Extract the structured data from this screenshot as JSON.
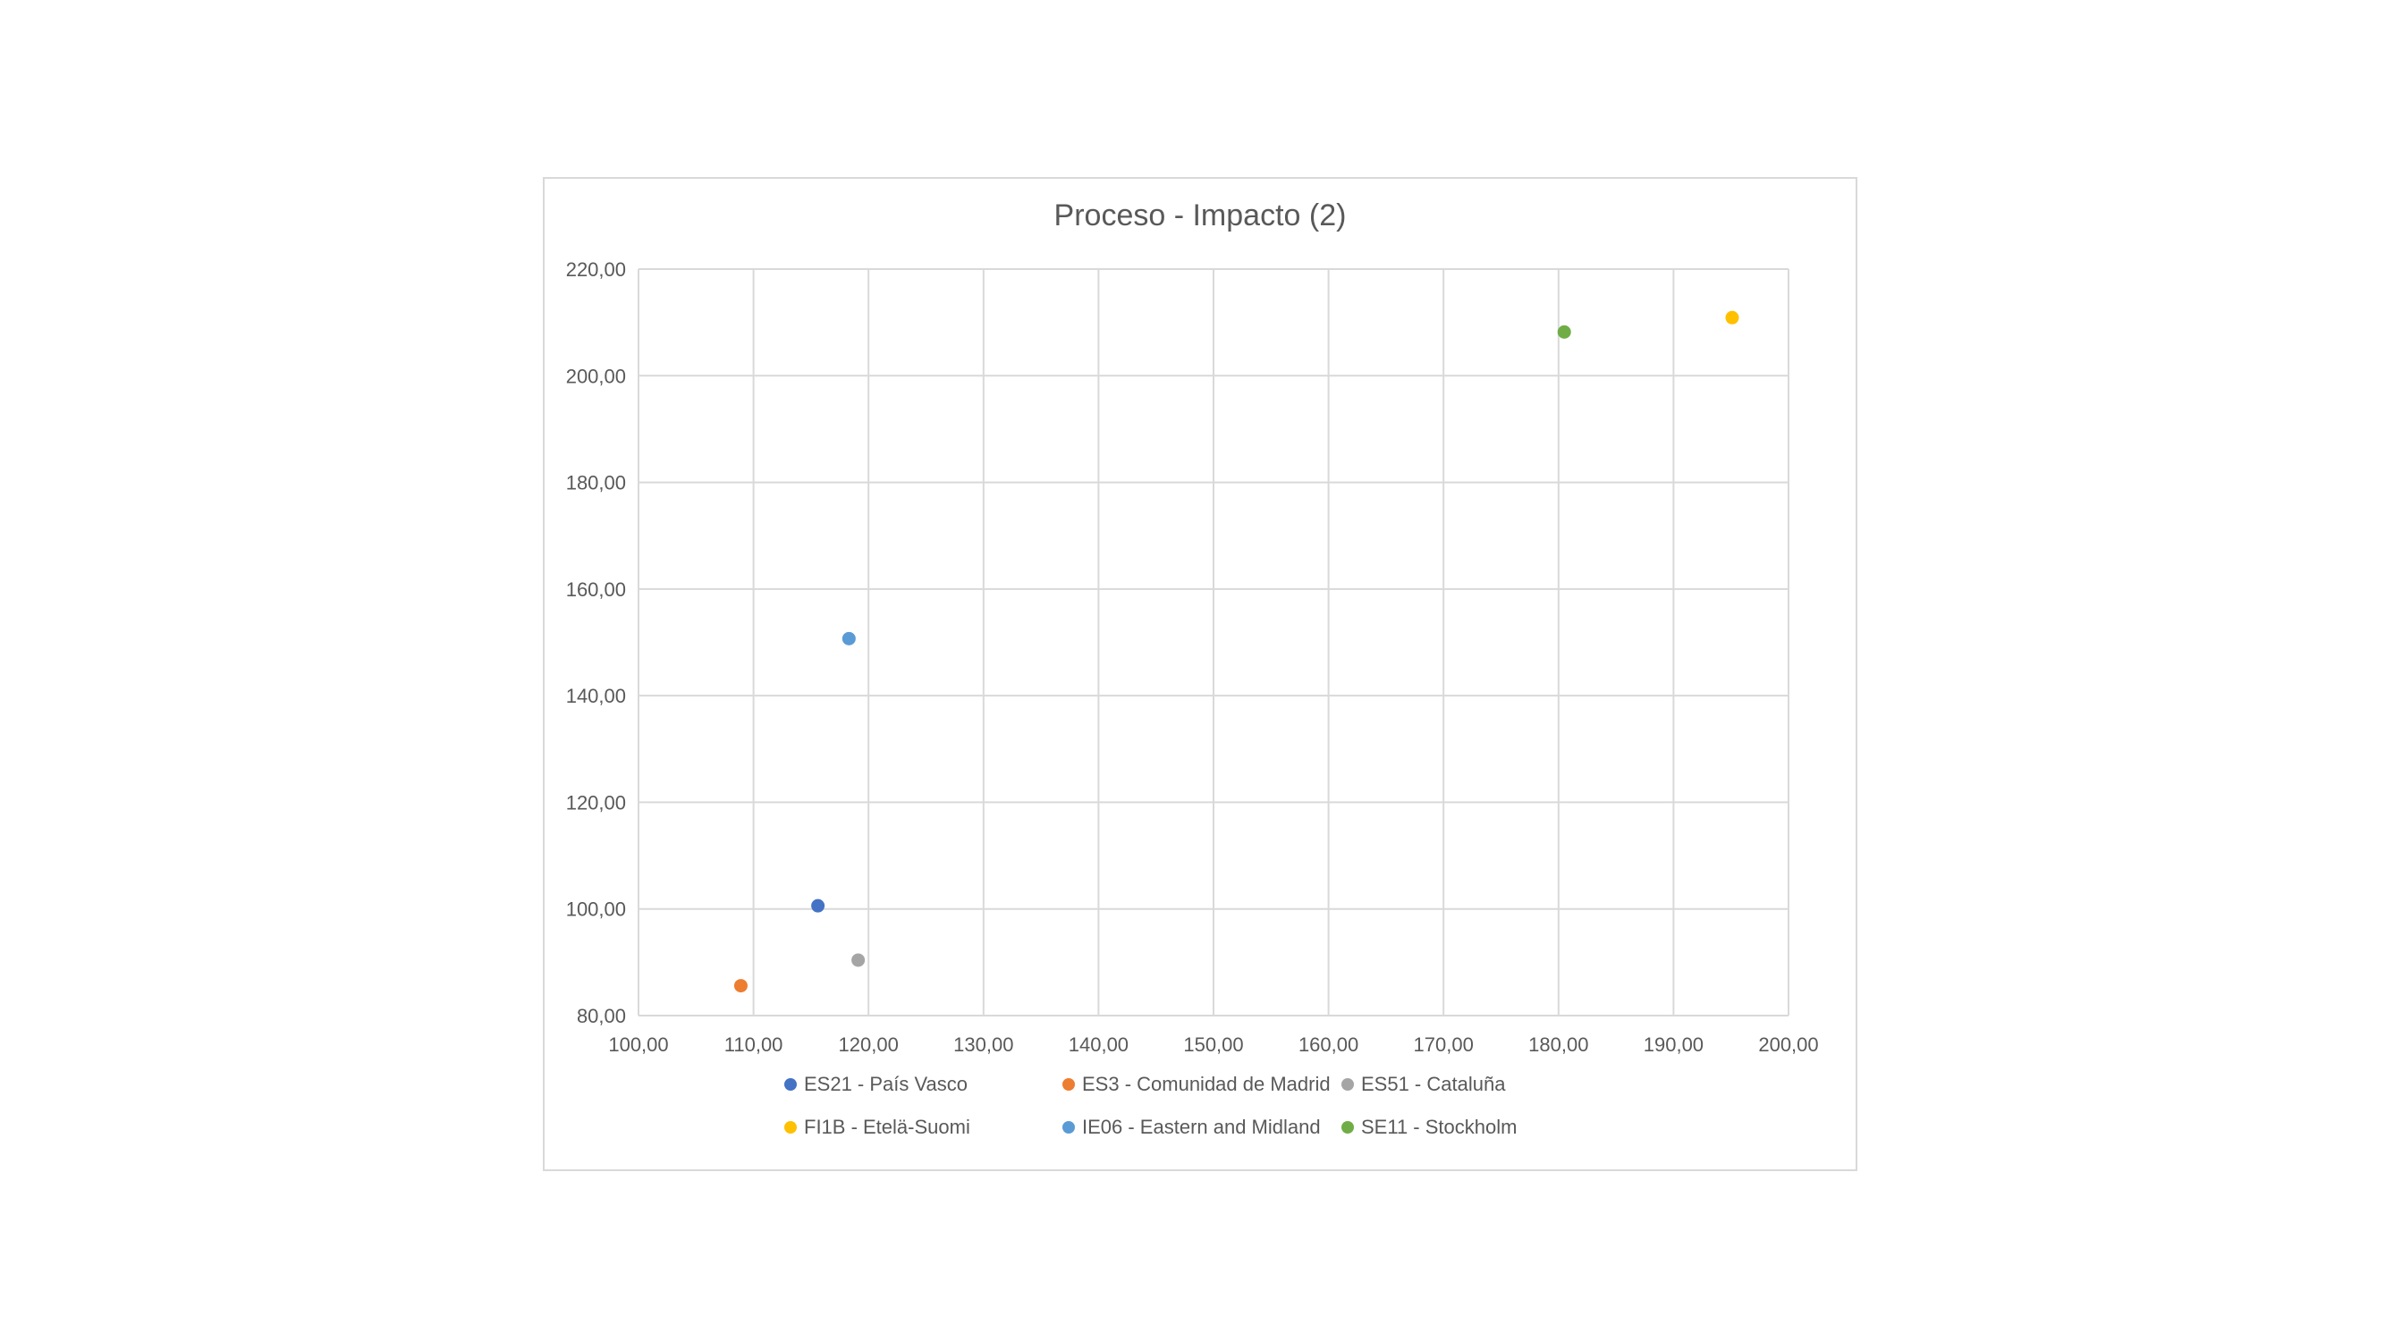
{
  "chart_data": {
    "type": "scatter",
    "title": "Proceso - Impacto (2)",
    "xlabel": "",
    "ylabel": "",
    "xlim": [
      100,
      200
    ],
    "ylim": [
      80,
      220
    ],
    "x_ticks": [
      "100,00",
      "110,00",
      "120,00",
      "130,00",
      "140,00",
      "150,00",
      "160,00",
      "170,00",
      "180,00",
      "190,00",
      "200,00"
    ],
    "y_ticks": [
      "80,00",
      "100,00",
      "120,00",
      "140,00",
      "160,00",
      "180,00",
      "200,00",
      "220,00"
    ],
    "grid": true,
    "legend_position": "bottom",
    "series": [
      {
        "name": "ES21 - País Vasco",
        "color": "#4472c4",
        "points": [
          {
            "x": 115.6,
            "y": 100.6
          }
        ]
      },
      {
        "name": "ES3 - Comunidad de Madrid",
        "color": "#ed7d31",
        "points": [
          {
            "x": 108.9,
            "y": 85.6
          }
        ]
      },
      {
        "name": "ES51 - Cataluña",
        "color": "#a5a5a5",
        "points": [
          {
            "x": 119.1,
            "y": 90.4
          }
        ]
      },
      {
        "name": "FI1B - Etelä-Suomi",
        "color": "#ffc000",
        "points": [
          {
            "x": 195.1,
            "y": 210.9
          }
        ]
      },
      {
        "name": "IE06 - Eastern and Midland",
        "color": "#5b9bd5",
        "points": [
          {
            "x": 118.3,
            "y": 150.7
          }
        ]
      },
      {
        "name": "SE11 - Stockholm",
        "color": "#70ad47",
        "points": [
          {
            "x": 180.5,
            "y": 208.2
          }
        ]
      }
    ]
  }
}
